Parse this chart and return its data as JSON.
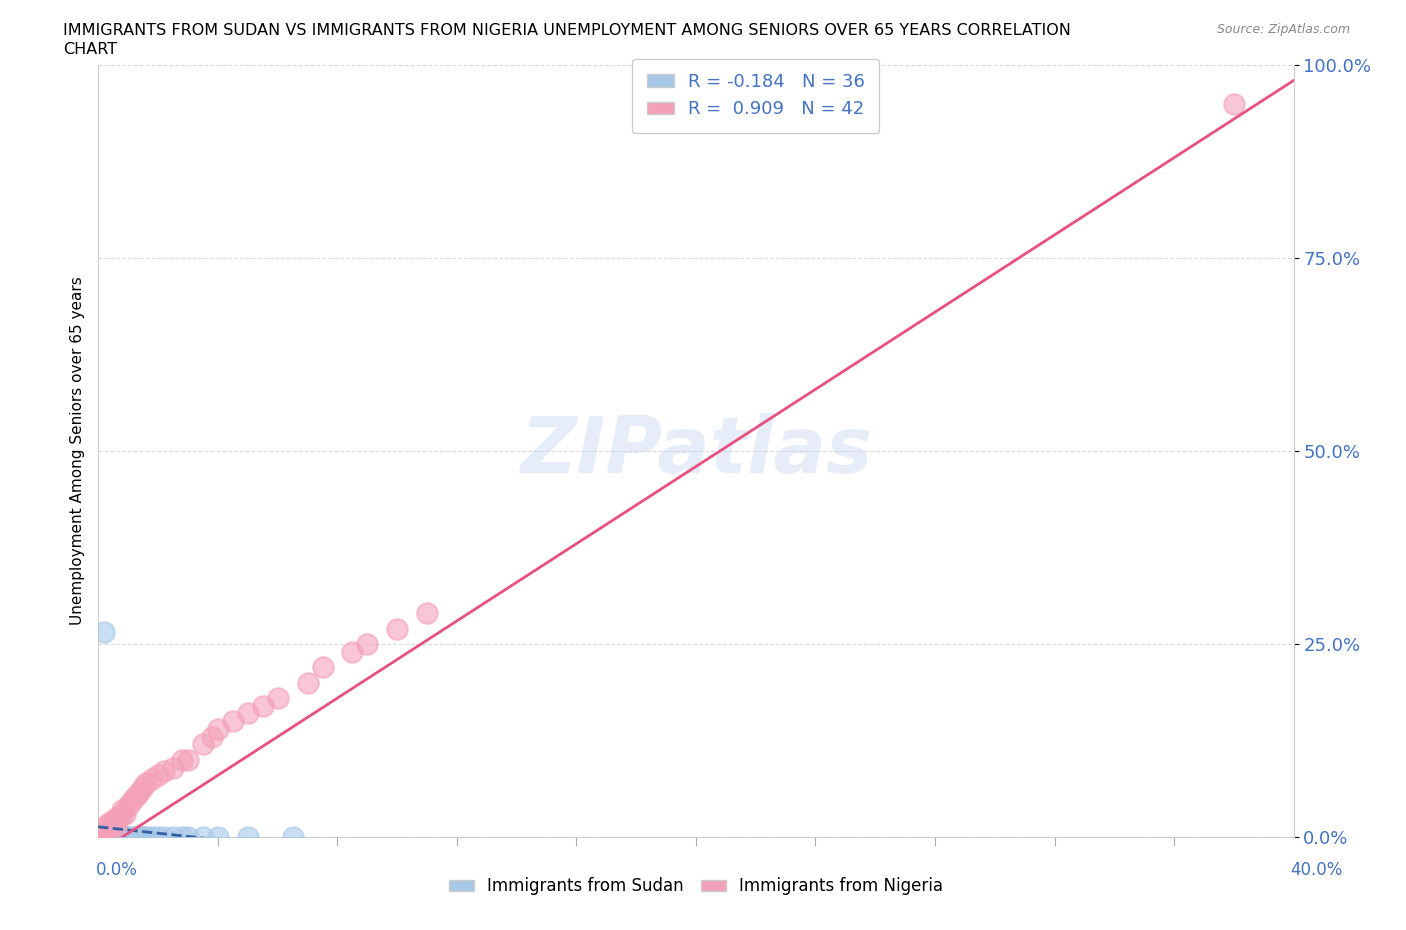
{
  "title_line1": "IMMIGRANTS FROM SUDAN VS IMMIGRANTS FROM NIGERIA UNEMPLOYMENT AMONG SENIORS OVER 65 YEARS CORRELATION",
  "title_line2": "CHART",
  "source": "Source: ZipAtlas.com",
  "ylabel": "Unemployment Among Seniors over 65 years",
  "sudan_R": -0.184,
  "sudan_N": 36,
  "nigeria_R": 0.909,
  "nigeria_N": 42,
  "sudan_color": "#a8c8e8",
  "nigeria_color": "#f4a0b8",
  "sudan_line_color": "#3060a0",
  "nigeria_line_color": "#e85080",
  "xmin": 0.0,
  "xmax": 0.4,
  "ymin": 0.0,
  "ymax": 1.0,
  "ytick_vals": [
    0.0,
    0.25,
    0.5,
    0.75,
    1.0
  ],
  "ytick_labels": [
    "0.0%",
    "25.0%",
    "50.0%",
    "75.0%",
    "100.0%"
  ],
  "sudan_x": [
    0.002,
    0.0,
    0.001,
    0.002,
    0.003,
    0.001,
    0.004,
    0.003,
    0.002,
    0.001,
    0.005,
    0.006,
    0.005,
    0.007,
    0.006,
    0.008,
    0.007,
    0.009,
    0.01,
    0.008,
    0.012,
    0.011,
    0.013,
    0.015,
    0.014,
    0.016,
    0.018,
    0.02,
    0.022,
    0.025,
    0.028,
    0.03,
    0.035,
    0.04,
    0.05,
    0.065
  ],
  "sudan_y": [
    0.265,
    0.0,
    0.0,
    0.0,
    0.0,
    0.0,
    0.0,
    0.0,
    0.0,
    0.0,
    0.0,
    0.0,
    0.0,
    0.0,
    0.0,
    0.0,
    0.0,
    0.0,
    0.0,
    0.0,
    0.0,
    0.0,
    0.0,
    0.0,
    0.0,
    0.0,
    0.0,
    0.0,
    0.0,
    0.0,
    0.0,
    0.0,
    0.0,
    0.0,
    0.0,
    0.0
  ],
  "nigeria_x": [
    0.001,
    0.002,
    0.003,
    0.001,
    0.002,
    0.004,
    0.003,
    0.005,
    0.006,
    0.004,
    0.007,
    0.008,
    0.006,
    0.009,
    0.01,
    0.008,
    0.012,
    0.011,
    0.014,
    0.013,
    0.016,
    0.018,
    0.015,
    0.02,
    0.022,
    0.025,
    0.028,
    0.03,
    0.035,
    0.038,
    0.04,
    0.045,
    0.05,
    0.055,
    0.06,
    0.07,
    0.075,
    0.085,
    0.09,
    0.1,
    0.11,
    0.38
  ],
  "nigeria_y": [
    0.0,
    0.0,
    0.005,
    0.01,
    0.005,
    0.01,
    0.015,
    0.02,
    0.015,
    0.02,
    0.025,
    0.03,
    0.025,
    0.03,
    0.04,
    0.035,
    0.05,
    0.045,
    0.06,
    0.055,
    0.07,
    0.075,
    0.065,
    0.08,
    0.085,
    0.09,
    0.1,
    0.1,
    0.12,
    0.13,
    0.14,
    0.15,
    0.16,
    0.17,
    0.18,
    0.2,
    0.22,
    0.24,
    0.25,
    0.27,
    0.29,
    0.95
  ]
}
